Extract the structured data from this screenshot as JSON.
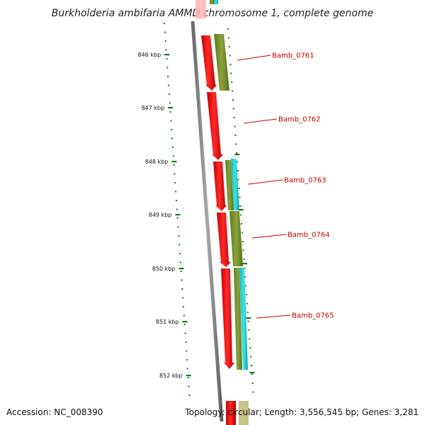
{
  "title": "Burkholderia ambifaria AMMD chromosome 1, complete genome",
  "footer": {
    "accession": "Accession: NC_008390",
    "topology": "Topology: circular; Length: 3,556,545 bp; Genes: 3,281"
  },
  "ruler": {
    "unit": "kbp",
    "ticks": [
      "846 kbp",
      "847 kbp",
      "848 kbp",
      "849 kbp",
      "850 kbp",
      "851 kbp",
      "852 kbp"
    ]
  },
  "genes": [
    {
      "name": "Bamb_0761"
    },
    {
      "name": "Bamb_0762"
    },
    {
      "name": "Bamb_0763"
    },
    {
      "name": "Bamb_0764"
    },
    {
      "name": "Bamb_0765"
    }
  ],
  "colors": {
    "backbone": "#808080",
    "cds": "#ff0000",
    "gene_track": "#7a8f2a",
    "feature_track": "#22cccc",
    "ruler_tick": "#1a7a1a",
    "label": "#c00000"
  }
}
